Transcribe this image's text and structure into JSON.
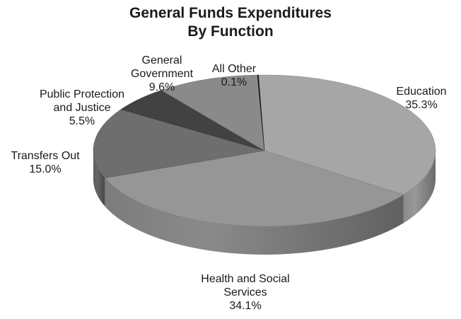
{
  "chart_data": {
    "type": "pie",
    "title": [
      "General Funds Expenditures",
      "By Function"
    ],
    "slices": [
      {
        "key": "education",
        "name": [
          "Education"
        ],
        "value": 35.3,
        "value_label": "35.3%",
        "color": "#a6a6a6"
      },
      {
        "key": "health",
        "name": [
          "Health and Social",
          "Services"
        ],
        "value": 34.1,
        "value_label": "34.1%",
        "color": "#969696"
      },
      {
        "key": "transfers",
        "name": [
          "Transfers Out"
        ],
        "value": 15.0,
        "value_label": "15.0%",
        "color": "#6e6e6e"
      },
      {
        "key": "public",
        "name": [
          "Public Protection",
          "and Justice"
        ],
        "value": 5.5,
        "value_label": "5.5%",
        "color": "#424242"
      },
      {
        "key": "general",
        "name": [
          "General",
          "Government"
        ],
        "value": 9.6,
        "value_label": "9.6%",
        "color": "#8a8a8a"
      },
      {
        "key": "other",
        "name": [
          "All Other"
        ],
        "value": 0.1,
        "value_label": "0.1%",
        "color": "#1e1e1e"
      }
    ],
    "style": "3d-exploded-none",
    "legend": "none"
  }
}
